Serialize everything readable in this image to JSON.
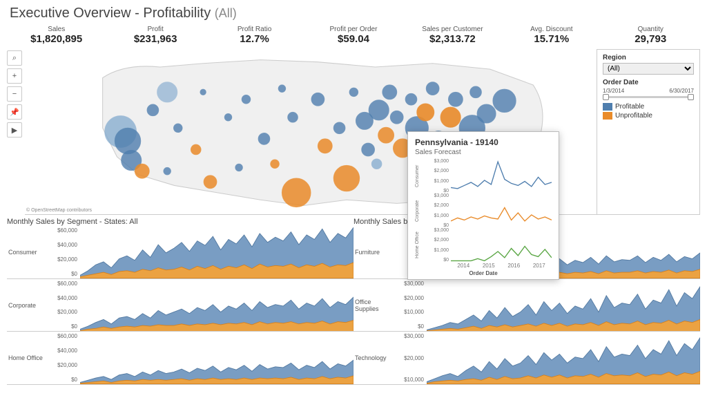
{
  "title": "Executive Overview - Profitability",
  "title_scope": "(All)",
  "colors": {
    "profitable": "#4f7eae",
    "profitable_light": "#7ba5cc",
    "unprofitable": "#e98b2a",
    "bg": "#ffffff",
    "map_land": "#f0f0f0",
    "map_border": "#cccccc",
    "grid": "#d9d9d9",
    "text": "#333333"
  },
  "kpis": [
    {
      "label": "Sales",
      "value": "$1,820,895"
    },
    {
      "label": "Profit",
      "value": "$231,963"
    },
    {
      "label": "Profit Ratio",
      "value": "12.7%"
    },
    {
      "label": "Profit per Order",
      "value": "$59.04"
    },
    {
      "label": "Sales per Customer",
      "value": "$2,313.72"
    },
    {
      "label": "Avg. Discount",
      "value": "15.71%"
    },
    {
      "label": "Quantity",
      "value": "29,793"
    }
  ],
  "tools": [
    "⌕",
    "+",
    "−",
    "📌",
    "▶"
  ],
  "map": {
    "attribution": "© OpenStreetMap contributors",
    "bubbles": [
      {
        "x": 85,
        "y": 115,
        "r": 22,
        "c": "#7ba5cc",
        "o": 0.7
      },
      {
        "x": 95,
        "y": 128,
        "r": 18,
        "c": "#4f7eae",
        "o": 0.8
      },
      {
        "x": 100,
        "y": 155,
        "r": 14,
        "c": "#4f7eae",
        "o": 0.8
      },
      {
        "x": 115,
        "y": 170,
        "r": 10,
        "c": "#e98b2a",
        "o": 0.85
      },
      {
        "x": 130,
        "y": 85,
        "r": 8,
        "c": "#4f7eae",
        "o": 0.8
      },
      {
        "x": 150,
        "y": 60,
        "r": 14,
        "c": "#7ba5cc",
        "o": 0.6
      },
      {
        "x": 165,
        "y": 110,
        "r": 6,
        "c": "#4f7eae",
        "o": 0.8
      },
      {
        "x": 190,
        "y": 140,
        "r": 7,
        "c": "#e98b2a",
        "o": 0.85
      },
      {
        "x": 210,
        "y": 185,
        "r": 9,
        "c": "#e98b2a",
        "o": 0.85
      },
      {
        "x": 235,
        "y": 95,
        "r": 5,
        "c": "#4f7eae",
        "o": 0.8
      },
      {
        "x": 260,
        "y": 70,
        "r": 6,
        "c": "#4f7eae",
        "o": 0.8
      },
      {
        "x": 285,
        "y": 125,
        "r": 8,
        "c": "#4f7eae",
        "o": 0.8
      },
      {
        "x": 300,
        "y": 160,
        "r": 6,
        "c": "#e98b2a",
        "o": 0.85
      },
      {
        "x": 330,
        "y": 200,
        "r": 20,
        "c": "#e98b2a",
        "o": 0.85
      },
      {
        "x": 325,
        "y": 95,
        "r": 7,
        "c": "#4f7eae",
        "o": 0.8
      },
      {
        "x": 360,
        "y": 70,
        "r": 9,
        "c": "#4f7eae",
        "o": 0.8
      },
      {
        "x": 370,
        "y": 135,
        "r": 10,
        "c": "#e98b2a",
        "o": 0.85
      },
      {
        "x": 390,
        "y": 110,
        "r": 8,
        "c": "#4f7eae",
        "o": 0.8
      },
      {
        "x": 400,
        "y": 180,
        "r": 18,
        "c": "#e98b2a",
        "o": 0.85
      },
      {
        "x": 410,
        "y": 60,
        "r": 6,
        "c": "#4f7eae",
        "o": 0.8
      },
      {
        "x": 425,
        "y": 100,
        "r": 12,
        "c": "#4f7eae",
        "o": 0.8
      },
      {
        "x": 430,
        "y": 140,
        "r": 9,
        "c": "#4f7eae",
        "o": 0.8
      },
      {
        "x": 445,
        "y": 85,
        "r": 14,
        "c": "#4f7eae",
        "o": 0.8
      },
      {
        "x": 455,
        "y": 120,
        "r": 11,
        "c": "#e98b2a",
        "o": 0.85
      },
      {
        "x": 460,
        "y": 60,
        "r": 10,
        "c": "#4f7eae",
        "o": 0.8
      },
      {
        "x": 470,
        "y": 95,
        "r": 9,
        "c": "#4f7eae",
        "o": 0.8
      },
      {
        "x": 478,
        "y": 138,
        "r": 13,
        "c": "#e98b2a",
        "o": 0.85
      },
      {
        "x": 490,
        "y": 70,
        "r": 8,
        "c": "#4f7eae",
        "o": 0.8
      },
      {
        "x": 498,
        "y": 110,
        "r": 16,
        "c": "#4f7eae",
        "o": 0.8
      },
      {
        "x": 500,
        "y": 150,
        "r": 10,
        "c": "#7ba5cc",
        "o": 0.7
      },
      {
        "x": 510,
        "y": 88,
        "r": 12,
        "c": "#e98b2a",
        "o": 0.9
      },
      {
        "x": 520,
        "y": 55,
        "r": 9,
        "c": "#4f7eae",
        "o": 0.8
      },
      {
        "x": 528,
        "y": 125,
        "r": 11,
        "c": "#4f7eae",
        "o": 0.8
      },
      {
        "x": 530,
        "y": 190,
        "r": 17,
        "c": "#e98b2a",
        "o": 0.85
      },
      {
        "x": 545,
        "y": 95,
        "r": 14,
        "c": "#e98b2a",
        "o": 0.9
      },
      {
        "x": 552,
        "y": 70,
        "r": 10,
        "c": "#4f7eae",
        "o": 0.8
      },
      {
        "x": 560,
        "y": 140,
        "r": 12,
        "c": "#4f7eae",
        "o": 0.8
      },
      {
        "x": 575,
        "y": 110,
        "r": 18,
        "c": "#4f7eae",
        "o": 0.8
      },
      {
        "x": 580,
        "y": 60,
        "r": 8,
        "c": "#4f7eae",
        "o": 0.8
      },
      {
        "x": 590,
        "y": 170,
        "r": 9,
        "c": "#e98b2a",
        "o": 0.85
      },
      {
        "x": 595,
        "y": 90,
        "r": 13,
        "c": "#4f7eae",
        "o": 0.8
      },
      {
        "x": 610,
        "y": 135,
        "r": 7,
        "c": "#4f7eae",
        "o": 0.8
      },
      {
        "x": 620,
        "y": 72,
        "r": 16,
        "c": "#4f7eae",
        "o": 0.8
      },
      {
        "x": 442,
        "y": 160,
        "r": 7,
        "c": "#7ba5cc",
        "o": 0.7
      },
      {
        "x": 150,
        "y": 170,
        "r": 5,
        "c": "#4f7eae",
        "o": 0.8
      },
      {
        "x": 200,
        "y": 60,
        "r": 4,
        "c": "#4f7eae",
        "o": 0.8
      },
      {
        "x": 310,
        "y": 55,
        "r": 5,
        "c": "#4f7eae",
        "o": 0.8
      },
      {
        "x": 250,
        "y": 165,
        "r": 5,
        "c": "#4f7eae",
        "o": 0.8
      }
    ]
  },
  "sidebar": {
    "region_label": "Region",
    "region_value": "(All)",
    "date_label": "Order Date",
    "date_start": "1/3/2014",
    "date_end": "6/30/2017",
    "legend": [
      {
        "label": "Profitable",
        "color": "#4f7eae"
      },
      {
        "label": "Unprofitable",
        "color": "#e98b2a"
      }
    ]
  },
  "left_section_title": "Monthly Sales by Segment - States: All",
  "right_section_title": "Monthly Sales b",
  "area_style": {
    "blue": "#6b93bd",
    "orange": "#f2a33c",
    "stroke_blue": "#3d6894",
    "stroke_orange": "#d97e14"
  },
  "left_rows": [
    {
      "label": "Consumer",
      "ymax": 60000,
      "ticks": [
        "$60,000",
        "$40,000",
        "$20,000",
        "$0"
      ],
      "blue": [
        4,
        10,
        18,
        22,
        14,
        26,
        30,
        24,
        38,
        28,
        45,
        34,
        40,
        48,
        36,
        50,
        44,
        56,
        38,
        52,
        46,
        58,
        42,
        60,
        48,
        55,
        50,
        62,
        45,
        58,
        52,
        66,
        48,
        60,
        54,
        68
      ],
      "orange": [
        2,
        4,
        6,
        8,
        5,
        9,
        10,
        8,
        12,
        10,
        14,
        11,
        12,
        15,
        11,
        16,
        13,
        17,
        12,
        16,
        14,
        18,
        13,
        19,
        15,
        17,
        16,
        19,
        14,
        18,
        16,
        20,
        15,
        18,
        17,
        21
      ]
    },
    {
      "label": "Corporate",
      "ymax": 60000,
      "ticks": [
        "$60,000",
        "$40,000",
        "$20,000",
        "$0"
      ],
      "blue": [
        3,
        7,
        12,
        16,
        10,
        18,
        20,
        16,
        24,
        18,
        28,
        22,
        26,
        30,
        24,
        32,
        28,
        36,
        26,
        34,
        30,
        38,
        28,
        40,
        32,
        36,
        34,
        42,
        30,
        38,
        34,
        44,
        32,
        40,
        36,
        46
      ],
      "orange": [
        1,
        3,
        4,
        6,
        4,
        6,
        7,
        6,
        8,
        7,
        9,
        8,
        8,
        10,
        8,
        10,
        9,
        11,
        9,
        11,
        10,
        12,
        9,
        13,
        10,
        12,
        11,
        13,
        10,
        12,
        11,
        14,
        10,
        13,
        12,
        15
      ]
    },
    {
      "label": "Home Office",
      "ymax": 60000,
      "ticks": [
        "$60,000",
        "$40,000",
        "$20,000",
        "$0"
      ],
      "blue": [
        2,
        5,
        8,
        10,
        6,
        12,
        14,
        10,
        16,
        12,
        18,
        14,
        16,
        20,
        15,
        21,
        18,
        24,
        16,
        22,
        19,
        25,
        17,
        26,
        20,
        23,
        22,
        28,
        19,
        25,
        22,
        30,
        20,
        27,
        24,
        32
      ],
      "orange": [
        1,
        2,
        3,
        4,
        2,
        4,
        5,
        4,
        6,
        5,
        6,
        5,
        6,
        7,
        5,
        7,
        6,
        8,
        6,
        7,
        6,
        8,
        6,
        8,
        7,
        8,
        7,
        9,
        6,
        8,
        7,
        10,
        7,
        9,
        8,
        11
      ]
    }
  ],
  "right_rows": [
    {
      "label": "Furniture",
      "ymax": 30000,
      "ticks": [
        "$30,",
        "$20,",
        "$10,"
      ],
      "blue": [
        3,
        6,
        9,
        11,
        8,
        13,
        15,
        11,
        18,
        13,
        20,
        15,
        18,
        22,
        16,
        24,
        20,
        26,
        18,
        24,
        21,
        28,
        19,
        30,
        22,
        25,
        24,
        30,
        21,
        28,
        24,
        32,
        22,
        29,
        26,
        34
      ],
      "orange": [
        1,
        2,
        3,
        4,
        3,
        4,
        5,
        4,
        6,
        5,
        6,
        5,
        6,
        7,
        5,
        8,
        7,
        8,
        6,
        8,
        7,
        9,
        6,
        10,
        7,
        8,
        8,
        10,
        7,
        9,
        8,
        11,
        7,
        10,
        9,
        12
      ]
    },
    {
      "label": "Office Supplies",
      "ymax": 30000,
      "ticks": [
        "$30,000",
        "$20,000",
        "$10,000",
        "$0"
      ],
      "blue": [
        2,
        5,
        8,
        12,
        10,
        16,
        22,
        14,
        28,
        18,
        32,
        20,
        26,
        36,
        22,
        40,
        28,
        38,
        24,
        34,
        30,
        44,
        26,
        48,
        32,
        38,
        36,
        50,
        30,
        42,
        38,
        56,
        34,
        52,
        44,
        60
      ],
      "orange": [
        1,
        2,
        3,
        4,
        3,
        5,
        7,
        4,
        8,
        6,
        9,
        6,
        8,
        10,
        7,
        11,
        8,
        11,
        7,
        10,
        9,
        12,
        8,
        13,
        9,
        11,
        10,
        14,
        9,
        12,
        11,
        15,
        10,
        14,
        12,
        16
      ]
    },
    {
      "label": "Technology",
      "ymax": 30000,
      "ticks": [
        "$30,000",
        "$20,000",
        "$10,000"
      ],
      "blue": [
        3,
        7,
        11,
        14,
        10,
        18,
        24,
        16,
        30,
        20,
        34,
        24,
        28,
        38,
        26,
        42,
        32,
        40,
        28,
        36,
        34,
        46,
        30,
        50,
        36,
        40,
        38,
        52,
        34,
        46,
        40,
        58,
        38,
        54,
        46,
        62
      ],
      "orange": [
        1,
        3,
        4,
        5,
        4,
        6,
        7,
        5,
        9,
        6,
        10,
        7,
        8,
        11,
        8,
        12,
        9,
        12,
        8,
        11,
        10,
        13,
        9,
        14,
        11,
        12,
        11,
        15,
        10,
        13,
        12,
        16,
        11,
        15,
        13,
        17
      ]
    }
  ],
  "tooltip": {
    "title": "Pennsylvania - 19140",
    "subtitle": "Sales Forecast",
    "y_ticks": [
      "$3,000",
      "$2,000",
      "$1,000",
      "$0"
    ],
    "x_ticks": [
      "2014",
      "2015",
      "2016",
      "2017"
    ],
    "x_label": "Order Date",
    "series": [
      {
        "label": "Consumer",
        "color": "#4f7eae",
        "values": [
          400,
          300,
          600,
          900,
          500,
          1100,
          700,
          2900,
          1200,
          800,
          600,
          1000,
          500,
          1400,
          700,
          900
        ]
      },
      {
        "label": "Corporate",
        "color": "#e98b2a",
        "values": [
          500,
          800,
          600,
          900,
          700,
          1000,
          800,
          700,
          1800,
          600,
          1300,
          500,
          1100,
          700,
          900,
          600
        ]
      },
      {
        "label": "Home Office",
        "color": "#5aa644",
        "values": [
          0,
          0,
          0,
          0,
          200,
          0,
          400,
          900,
          300,
          1200,
          500,
          1400,
          600,
          400,
          1100,
          300
        ]
      }
    ]
  }
}
